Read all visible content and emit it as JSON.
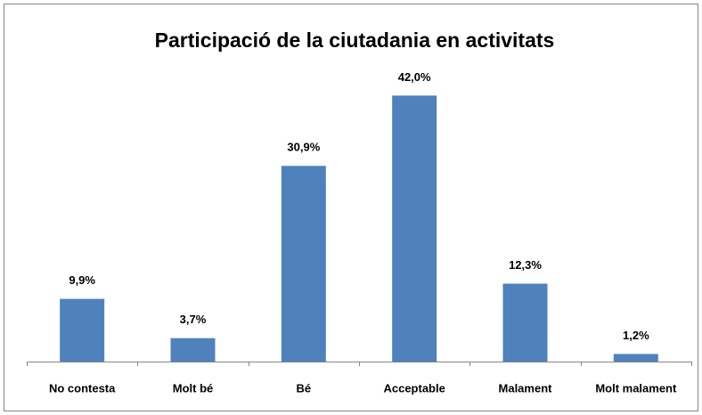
{
  "chart_data": {
    "type": "bar",
    "title": "Participació de la ciutadania en activitats",
    "categories": [
      "No contesta",
      "Molt bé",
      "Bé",
      "Acceptable",
      "Malament",
      "Molt malament"
    ],
    "values": [
      9.9,
      3.7,
      30.9,
      42.0,
      12.3,
      1.2
    ],
    "value_labels": [
      "9,9%",
      "3,7%",
      "30,9%",
      "42,0%",
      "12,3%",
      "1,2%"
    ],
    "color": "#4f81bd",
    "ylim": [
      0,
      45
    ]
  }
}
